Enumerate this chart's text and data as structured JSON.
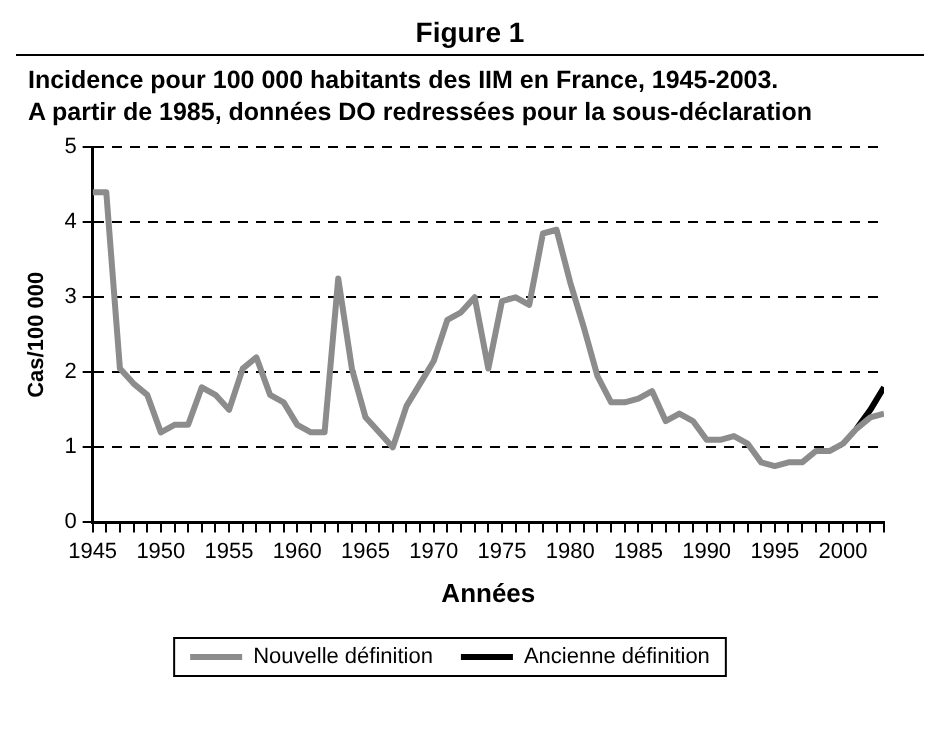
{
  "chart_data": {
    "type": "line",
    "title": "Figure 1",
    "subtitle": "Incidence pour 100 000 habitants des IIM en France, 1945-2003.\nA partir de 1985, données DO redressées pour la sous-déclaration",
    "xlabel": "Années",
    "ylabel": "Cas/100 000",
    "x": [
      1945,
      1946,
      1947,
      1948,
      1949,
      1950,
      1951,
      1952,
      1953,
      1954,
      1955,
      1956,
      1957,
      1958,
      1959,
      1960,
      1961,
      1962,
      1963,
      1964,
      1965,
      1966,
      1967,
      1968,
      1969,
      1970,
      1971,
      1972,
      1973,
      1974,
      1975,
      1976,
      1977,
      1978,
      1979,
      1980,
      1981,
      1982,
      1983,
      1984,
      1985,
      1986,
      1987,
      1988,
      1989,
      1990,
      1991,
      1992,
      1993,
      1994,
      1995,
      1996,
      1997,
      1998,
      1999,
      2000,
      2001,
      2002,
      2003
    ],
    "series": [
      {
        "name": "Nouvelle définition",
        "color": "#8c8c8c",
        "values": [
          4.4,
          4.4,
          2.05,
          1.85,
          1.7,
          1.2,
          1.3,
          1.3,
          1.8,
          1.7,
          1.5,
          2.05,
          2.2,
          1.7,
          1.6,
          1.3,
          1.2,
          1.2,
          3.25,
          2.05,
          1.4,
          1.2,
          1.0,
          1.55,
          1.85,
          2.15,
          2.7,
          2.8,
          3.0,
          2.05,
          2.95,
          3.0,
          2.9,
          3.85,
          3.9,
          3.2,
          2.6,
          1.95,
          1.6,
          1.6,
          1.65,
          1.75,
          1.35,
          1.45,
          1.35,
          1.1,
          1.1,
          1.15,
          1.05,
          0.8,
          0.75,
          0.8,
          0.8,
          0.95,
          0.95,
          1.05,
          1.25,
          1.4,
          1.45
        ]
      },
      {
        "name": "Ancienne définition",
        "color": "#000000",
        "x": [
          2001,
          2002,
          2003
        ],
        "values": [
          1.25,
          1.5,
          1.8
        ]
      }
    ],
    "xlim": [
      1945,
      2003
    ],
    "xticks": [
      1945,
      {
        "value": 1946,
        "label": null
      },
      {
        "value": 1947,
        "label": null
      },
      {
        "value": 1948,
        "label": null
      },
      {
        "value": 1949,
        "label": null
      },
      1950,
      {
        "value": 1951,
        "label": null
      },
      {
        "value": 1952,
        "label": null
      },
      {
        "value": 1953,
        "label": null
      },
      {
        "value": 1954,
        "label": null
      },
      1955,
      {
        "value": 1956,
        "label": null
      },
      {
        "value": 1957,
        "label": null
      },
      {
        "value": 1958,
        "label": null
      },
      {
        "value": 1959,
        "label": null
      },
      1960,
      {
        "value": 1961,
        "label": null
      },
      {
        "value": 1962,
        "label": null
      },
      {
        "value": 1963,
        "label": null
      },
      {
        "value": 1964,
        "label": null
      },
      1965,
      {
        "value": 1966,
        "label": null
      },
      {
        "value": 1967,
        "label": null
      },
      {
        "value": 1968,
        "label": null
      },
      {
        "value": 1969,
        "label": null
      },
      1970,
      {
        "value": 1971,
        "label": null
      },
      {
        "value": 1972,
        "label": null
      },
      {
        "value": 1973,
        "label": null
      },
      {
        "value": 1974,
        "label": null
      },
      1975,
      {
        "value": 1976,
        "label": null
      },
      {
        "value": 1977,
        "label": null
      },
      {
        "value": 1978,
        "label": null
      },
      {
        "value": 1979,
        "label": null
      },
      1980,
      {
        "value": 1981,
        "label": null
      },
      {
        "value": 1982,
        "label": null
      },
      {
        "value": 1983,
        "label": null
      },
      {
        "value": 1984,
        "label": null
      },
      1985,
      {
        "value": 1986,
        "label": null
      },
      {
        "value": 1987,
        "label": null
      },
      {
        "value": 1988,
        "label": null
      },
      {
        "value": 1989,
        "label": null
      },
      1990,
      {
        "value": 1991,
        "label": null
      },
      {
        "value": 1992,
        "label": null
      },
      {
        "value": 1993,
        "label": null
      },
      {
        "value": 1994,
        "label": null
      },
      1995,
      {
        "value": 1996,
        "label": null
      },
      {
        "value": 1997,
        "label": null
      },
      {
        "value": 1998,
        "label": null
      },
      {
        "value": 1999,
        "label": null
      },
      2000,
      {
        "value": 2001,
        "label": null
      },
      {
        "value": 2002,
        "label": null
      },
      {
        "value": 2003,
        "label": null
      }
    ],
    "ylim": [
      0,
      5
    ],
    "yticks": [
      0,
      1,
      2,
      3,
      4,
      5
    ],
    "grid": "y",
    "legend": "bottom",
    "marker": "none",
    "line_style": "solid"
  }
}
